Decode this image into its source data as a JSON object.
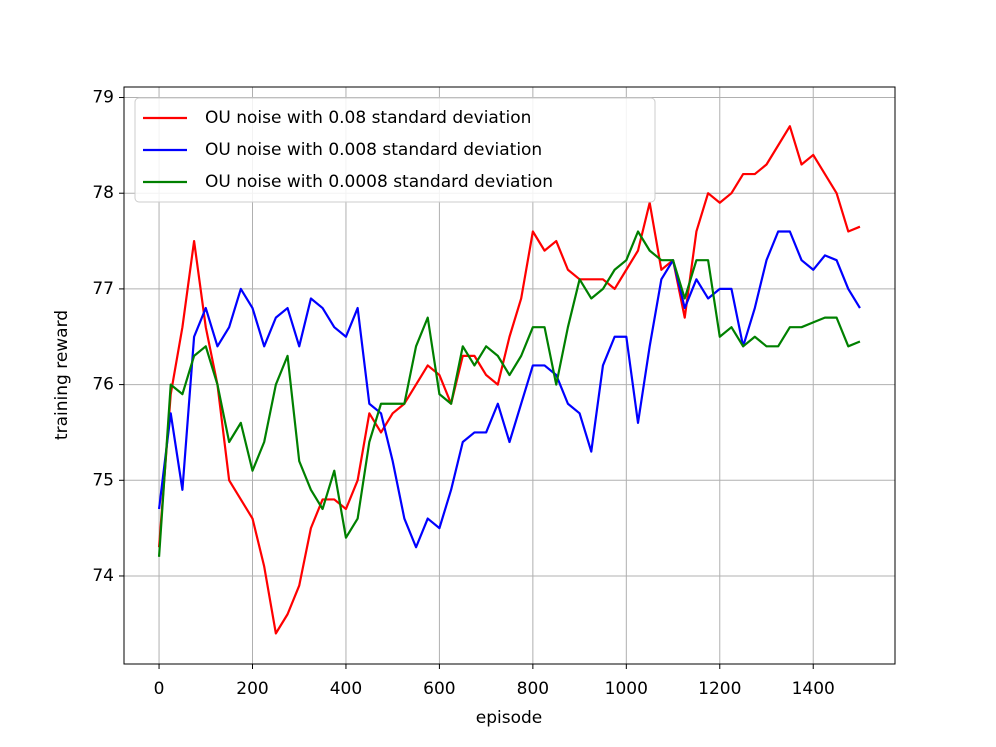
{
  "chart_data": {
    "type": "line",
    "xlabel": "episode",
    "ylabel": "training reward",
    "x": [
      0,
      25,
      50,
      75,
      100,
      125,
      150,
      175,
      200,
      225,
      250,
      275,
      300,
      325,
      350,
      375,
      400,
      425,
      450,
      475,
      500,
      525,
      550,
      575,
      600,
      625,
      650,
      675,
      700,
      725,
      750,
      775,
      800,
      825,
      850,
      875,
      900,
      925,
      950,
      975,
      1000,
      1025,
      1050,
      1075,
      1100,
      1125,
      1150,
      1175,
      1200,
      1225,
      1250,
      1275,
      1300,
      1325,
      1350,
      1375,
      1400,
      1425,
      1450,
      1475,
      1500
    ],
    "series": [
      {
        "name": "OU noise with 0.08 standard deviation",
        "color": "#ff0000",
        "values": [
          74.3,
          75.9,
          76.6,
          77.5,
          76.6,
          76.0,
          75.0,
          74.8,
          74.6,
          74.1,
          73.4,
          73.6,
          73.9,
          74.5,
          74.8,
          74.8,
          74.7,
          75.0,
          75.7,
          75.5,
          75.7,
          75.8,
          76.0,
          76.2,
          76.1,
          75.8,
          76.3,
          76.3,
          76.1,
          76.0,
          76.5,
          76.9,
          77.6,
          77.4,
          77.5,
          77.2,
          77.1,
          77.1,
          77.1,
          77.0,
          77.2,
          77.4,
          77.9,
          77.2,
          77.3,
          76.7,
          77.6,
          78.0,
          77.9,
          78.0,
          78.2,
          78.2,
          78.3,
          78.5,
          78.7,
          78.3,
          78.4,
          78.2,
          78.0,
          77.6,
          77.65
        ]
      },
      {
        "name": "OU noise with 0.008 standard deviation",
        "color": "#0000ff",
        "values": [
          74.7,
          75.7,
          74.9,
          76.5,
          76.8,
          76.4,
          76.6,
          77.0,
          76.8,
          76.4,
          76.7,
          76.8,
          76.4,
          76.9,
          76.8,
          76.6,
          76.5,
          76.8,
          75.8,
          75.7,
          75.2,
          74.6,
          74.3,
          74.6,
          74.5,
          74.9,
          75.4,
          75.5,
          75.5,
          75.8,
          75.4,
          75.8,
          76.2,
          76.2,
          76.1,
          75.8,
          75.7,
          75.3,
          76.2,
          76.5,
          76.5,
          75.6,
          76.4,
          77.1,
          77.3,
          76.8,
          77.1,
          76.9,
          77.0,
          77.0,
          76.4,
          76.8,
          77.3,
          77.6,
          77.6,
          77.3,
          77.2,
          77.35,
          77.3,
          77.0,
          76.8
        ]
      },
      {
        "name": "OU noise with 0.0008 standard deviation",
        "color": "#008000",
        "values": [
          74.2,
          76.0,
          75.9,
          76.3,
          76.4,
          76.0,
          75.4,
          75.6,
          75.1,
          75.4,
          76.0,
          76.3,
          75.2,
          74.9,
          74.7,
          75.1,
          74.4,
          74.6,
          75.4,
          75.8,
          75.8,
          75.8,
          76.4,
          76.7,
          75.9,
          75.8,
          76.4,
          76.2,
          76.4,
          76.3,
          76.1,
          76.3,
          76.6,
          76.6,
          76.0,
          76.6,
          77.1,
          76.9,
          77.0,
          77.2,
          77.3,
          77.6,
          77.4,
          77.3,
          77.3,
          76.9,
          77.3,
          77.3,
          76.5,
          76.6,
          76.4,
          76.5,
          76.4,
          76.4,
          76.6,
          76.6,
          76.65,
          76.7,
          76.7,
          76.4,
          76.45
        ]
      }
    ],
    "xlim": [
      -75,
      1575
    ],
    "ylim": [
      73.08,
      79.11
    ],
    "xticks": [
      0,
      200,
      400,
      600,
      800,
      1000,
      1200,
      1400
    ],
    "yticks": [
      74,
      75,
      76,
      77,
      78,
      79
    ],
    "grid": true,
    "legend": "upper left"
  }
}
